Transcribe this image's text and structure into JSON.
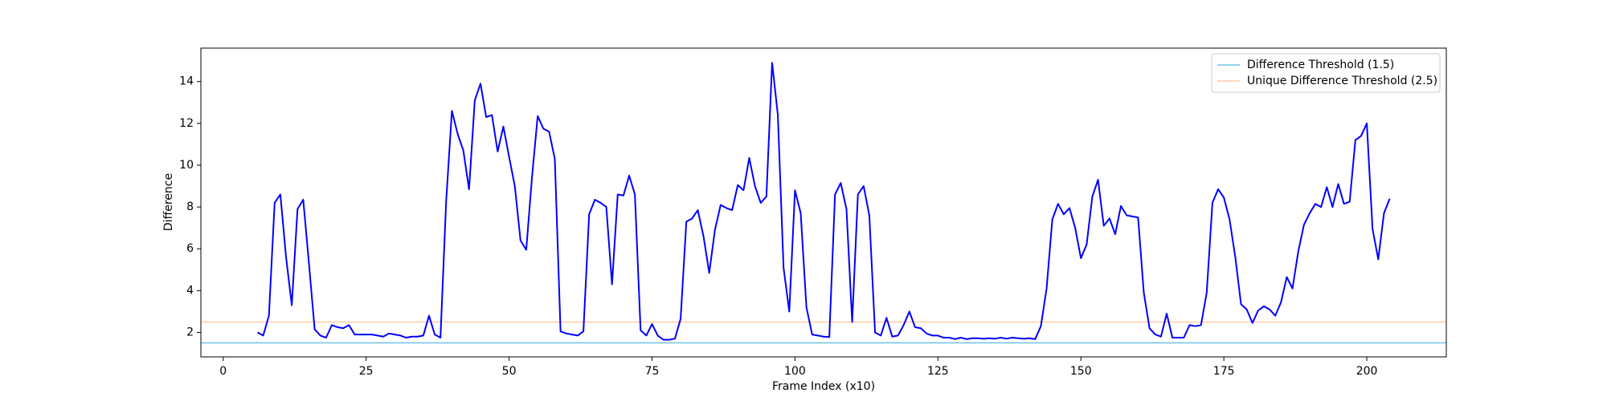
{
  "chart_data": {
    "type": "line",
    "xlabel": "Frame Index (x10)",
    "ylabel": "Difference",
    "x": [
      6,
      7,
      8,
      9,
      10,
      11,
      12,
      13,
      14,
      15,
      16,
      17,
      18,
      19,
      20,
      21,
      22,
      23,
      24,
      25,
      26,
      27,
      28,
      29,
      30,
      31,
      32,
      33,
      34,
      35,
      36,
      37,
      38,
      39,
      40,
      41,
      42,
      43,
      44,
      45,
      46,
      47,
      48,
      49,
      50,
      51,
      52,
      53,
      54,
      55,
      56,
      57,
      58,
      59,
      60,
      61,
      62,
      63,
      64,
      65,
      66,
      67,
      68,
      69,
      70,
      71,
      72,
      73,
      74,
      75,
      76,
      77,
      78,
      79,
      80,
      81,
      82,
      83,
      84,
      85,
      86,
      87,
      88,
      89,
      90,
      91,
      92,
      93,
      94,
      95,
      96,
      97,
      98,
      99,
      100,
      101,
      102,
      103,
      104,
      105,
      106,
      107,
      108,
      109,
      110,
      111,
      112,
      113,
      114,
      115,
      116,
      117,
      118,
      119,
      120,
      121,
      122,
      123,
      124,
      125,
      126,
      127,
      128,
      129,
      130,
      131,
      132,
      133,
      134,
      135,
      136,
      137,
      138,
      139,
      140,
      141,
      142,
      143,
      144,
      145,
      146,
      147,
      148,
      149,
      150,
      151,
      152,
      153,
      154,
      155,
      156,
      157,
      158,
      159,
      160,
      161,
      162,
      163,
      164,
      165,
      166,
      167,
      168,
      169,
      170,
      171,
      172,
      173,
      174,
      175,
      176,
      177,
      178,
      179,
      180,
      181,
      182,
      183,
      184,
      185,
      186,
      187,
      188,
      189,
      190,
      191,
      192,
      193,
      194,
      195,
      196,
      197,
      198,
      199,
      200,
      201,
      202,
      203,
      204
    ],
    "series": [
      {
        "color": "#0000ff",
        "values": [
          2.0,
          1.85,
          2.8,
          8.2,
          8.6,
          5.6,
          3.3,
          7.9,
          8.35,
          5.3,
          2.15,
          1.85,
          1.75,
          2.35,
          2.25,
          2.2,
          2.35,
          1.9,
          1.9,
          1.9,
          1.9,
          1.85,
          1.8,
          1.95,
          1.9,
          1.85,
          1.75,
          1.8,
          1.8,
          1.85,
          2.8,
          1.9,
          1.75,
          8.3,
          12.6,
          11.5,
          10.7,
          8.85,
          13.1,
          13.9,
          12.3,
          12.4,
          10.65,
          11.85,
          10.4,
          9.0,
          6.4,
          5.95,
          9.4,
          12.35,
          11.75,
          11.6,
          10.3,
          2.05,
          1.95,
          1.9,
          1.85,
          2.05,
          7.65,
          8.35,
          8.2,
          8.0,
          4.3,
          8.6,
          8.55,
          9.5,
          8.6,
          2.1,
          1.85,
          2.4,
          1.85,
          1.65,
          1.65,
          1.7,
          2.65,
          7.3,
          7.45,
          7.85,
          6.6,
          4.85,
          6.9,
          8.1,
          7.95,
          7.85,
          9.05,
          8.8,
          10.35,
          9.0,
          8.2,
          8.5,
          14.9,
          12.4,
          5.1,
          3.0,
          8.8,
          7.7,
          3.2,
          1.9,
          1.85,
          1.8,
          1.78,
          8.6,
          9.15,
          7.9,
          2.5,
          8.6,
          9.0,
          7.6,
          2.0,
          1.85,
          2.7,
          1.8,
          1.85,
          2.35,
          3.0,
          2.25,
          2.2,
          1.95,
          1.85,
          1.85,
          1.75,
          1.75,
          1.68,
          1.75,
          1.68,
          1.72,
          1.72,
          1.7,
          1.72,
          1.7,
          1.75,
          1.7,
          1.75,
          1.72,
          1.7,
          1.72,
          1.68,
          2.3,
          4.1,
          7.4,
          8.15,
          7.65,
          7.95,
          7.0,
          5.55,
          6.2,
          8.5,
          9.3,
          7.1,
          7.45,
          6.7,
          8.05,
          7.6,
          7.55,
          7.5,
          3.9,
          2.2,
          1.9,
          1.8,
          2.9,
          1.75,
          1.75,
          1.75,
          2.35,
          2.3,
          2.35,
          3.9,
          8.2,
          8.85,
          8.45,
          7.4,
          5.6,
          3.35,
          3.1,
          2.45,
          3.05,
          3.25,
          3.1,
          2.8,
          3.45,
          4.65,
          4.1,
          5.85,
          7.15,
          7.7,
          8.15,
          8.0,
          8.95,
          8.0,
          9.1,
          8.15,
          8.25,
          11.2,
          11.4,
          12.0,
          6.95,
          5.5,
          7.7,
          8.4
        ]
      }
    ],
    "hlines": [
      {
        "name": "Difference Threshold (1.5)",
        "value": 1.5,
        "color": "#6ec3ea"
      },
      {
        "name": "Unique Difference Threshold (2.5)",
        "value": 2.5,
        "color": "#ffcba4"
      }
    ],
    "xlim": [
      -3.9,
      213.9
    ],
    "xticks": [
      0,
      25,
      50,
      75,
      100,
      125,
      150,
      175,
      200
    ],
    "ylim": [
      0.83,
      15.6
    ],
    "yticks": [
      2,
      4,
      6,
      8,
      10,
      12,
      14
    ],
    "legend": "upper right"
  }
}
